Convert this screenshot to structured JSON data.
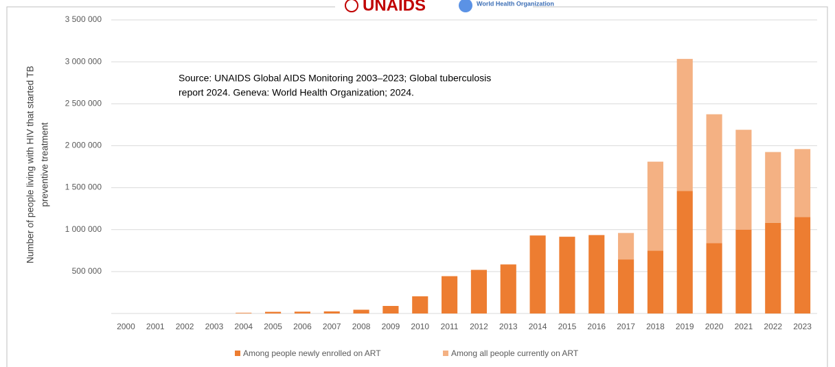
{
  "chart_data": {
    "type": "stacked-bar",
    "logos": [
      "UNAIDS",
      "World Health Organization"
    ],
    "annotation": [
      "Source: UNAIDS Global AIDS Monitoring 2003–2023; Global tuberculosis",
      "report 2024. Geneva: World Health Organization; 2024."
    ],
    "y_label": [
      "Number of people living with HIV that started TB",
      "preventive treatment"
    ],
    "categories": [
      "2000",
      "2001",
      "2002",
      "2003",
      "2004",
      "2005",
      "2006",
      "2007",
      "2008",
      "2009",
      "2010",
      "2011",
      "2012",
      "2013",
      "2014",
      "2015",
      "2016",
      "2017",
      "2018",
      "2019",
      "2020",
      "2021",
      "2022",
      "2023"
    ],
    "series": [
      {
        "name": "Among people newly enrolled on ART",
        "color": "#ed7d31",
        "values": [
          0,
          0,
          0,
          0,
          5000,
          20000,
          22000,
          25000,
          45000,
          90000,
          205000,
          445000,
          520000,
          585000,
          930000,
          915000,
          935000,
          645000,
          750000,
          1460000,
          840000,
          1000000,
          1080000,
          1150000
        ]
      },
      {
        "name": "Among all people currently on ART",
        "color": "#f4b183",
        "values": [
          0,
          0,
          0,
          0,
          5000,
          0,
          0,
          0,
          0,
          0,
          0,
          0,
          0,
          0,
          0,
          0,
          0,
          315000,
          1060000,
          1575000,
          1535000,
          1190000,
          845000,
          810000
        ]
      }
    ],
    "ylim": [
      0,
      3500000
    ],
    "yticks": [
      {
        "value": 500000,
        "label": "500 000"
      },
      {
        "value": 1000000,
        "label": "1 000 000"
      },
      {
        "value": 1500000,
        "label": "1 500 000"
      },
      {
        "value": 2000000,
        "label": "2 000 000"
      },
      {
        "value": 2500000,
        "label": "2 500 000"
      },
      {
        "value": 3000000,
        "label": "3 000 000"
      },
      {
        "value": 3500000,
        "label": "3 500 000"
      }
    ],
    "grid": true
  }
}
